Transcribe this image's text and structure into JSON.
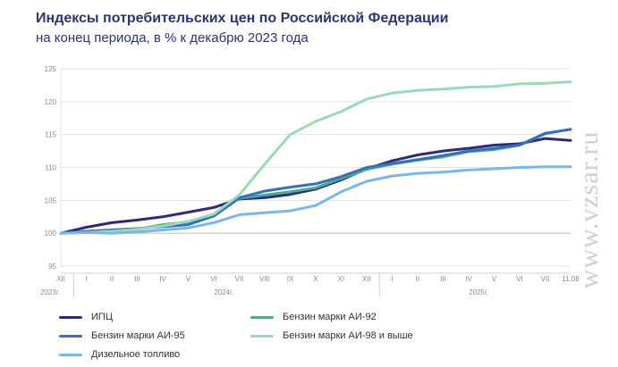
{
  "title": "Индексы потребительских цен по Российской Федерации",
  "subtitle": "на конец периода, в % к декабрю 2023 года",
  "watermark": "www.vzsar.ru",
  "chart_data": {
    "type": "line",
    "title": "Индексы потребительских цен по Российской Федерации",
    "subtitle": "на конец периода, в % к декабрю 2023 года",
    "x_ticks": [
      "XII",
      "I",
      "II",
      "III",
      "IV",
      "V",
      "VI",
      "VII",
      "VIII",
      "IX",
      "X",
      "XI",
      "XII",
      "I",
      "II",
      "III",
      "IV",
      "V",
      "VI",
      "VII",
      "11.08"
    ],
    "year_labels": [
      {
        "label": "2023г.",
        "start": 0,
        "end": 0
      },
      {
        "label": "2024г.",
        "start": 1,
        "end": 12
      },
      {
        "label": "2025г.",
        "start": 13,
        "end": 20
      }
    ],
    "ylim": [
      95,
      125
    ],
    "yticks": [
      95,
      100,
      105,
      110,
      115,
      120,
      125
    ],
    "grid": true,
    "legend_position": "bottom",
    "series": [
      {
        "name": "ИПЦ",
        "color": "#2e2a78",
        "values": [
          100,
          100.9,
          101.6,
          102.0,
          102.5,
          103.2,
          103.9,
          105.2,
          105.4,
          105.9,
          106.7,
          108.1,
          109.8,
          111.0,
          111.9,
          112.5,
          112.9,
          113.4,
          113.6,
          114.4,
          114.1
        ]
      },
      {
        "name": "Бензин марки АИ-92",
        "color": "#4aab92",
        "values": [
          100,
          100.2,
          100.3,
          100.6,
          101.3,
          101.7,
          102.6,
          105.3,
          105.8,
          106.3,
          106.9,
          108.3,
          109.7,
          110.5,
          111.1,
          111.6,
          112.4,
          112.7,
          113.4,
          115.1,
          115.8
        ]
      },
      {
        "name": "Бензин марки АИ-95",
        "color": "#3670b8",
        "values": [
          100,
          100.3,
          100.5,
          100.7,
          101.0,
          101.3,
          102.6,
          105.4,
          106.4,
          107.0,
          107.5,
          108.6,
          110.0,
          110.6,
          111.2,
          111.8,
          112.5,
          112.9,
          113.4,
          115.2,
          115.8
        ]
      },
      {
        "name": "Бензин марки АИ-98 и выше",
        "color": "#9bd9b7",
        "values": [
          100,
          100.1,
          100.3,
          100.6,
          101.1,
          101.8,
          102.9,
          105.8,
          110.5,
          115.0,
          117.0,
          118.5,
          120.4,
          121.3,
          121.7,
          121.9,
          122.2,
          122.3,
          122.7,
          122.8,
          123.0
        ]
      },
      {
        "name": "Дизельное топливо",
        "color": "#7ab6ea",
        "values": [
          100,
          100.1,
          100.0,
          100.2,
          100.5,
          100.8,
          101.6,
          102.8,
          103.1,
          103.4,
          104.2,
          106.3,
          107.9,
          108.7,
          109.1,
          109.3,
          109.6,
          109.8,
          110.0,
          110.1,
          110.1
        ]
      }
    ]
  },
  "legend": [
    {
      "label": "ИПЦ",
      "color": "#2e2a78"
    },
    {
      "label": "Бензин марки АИ-92",
      "color": "#4aab92"
    },
    {
      "label": "Бензин марки АИ-95",
      "color": "#3670b8"
    },
    {
      "label": "Бензин марки АИ-98 и выше",
      "color": "#9bd9b7"
    },
    {
      "label": "Дизельное топливо",
      "color": "#7ab6ea"
    }
  ]
}
